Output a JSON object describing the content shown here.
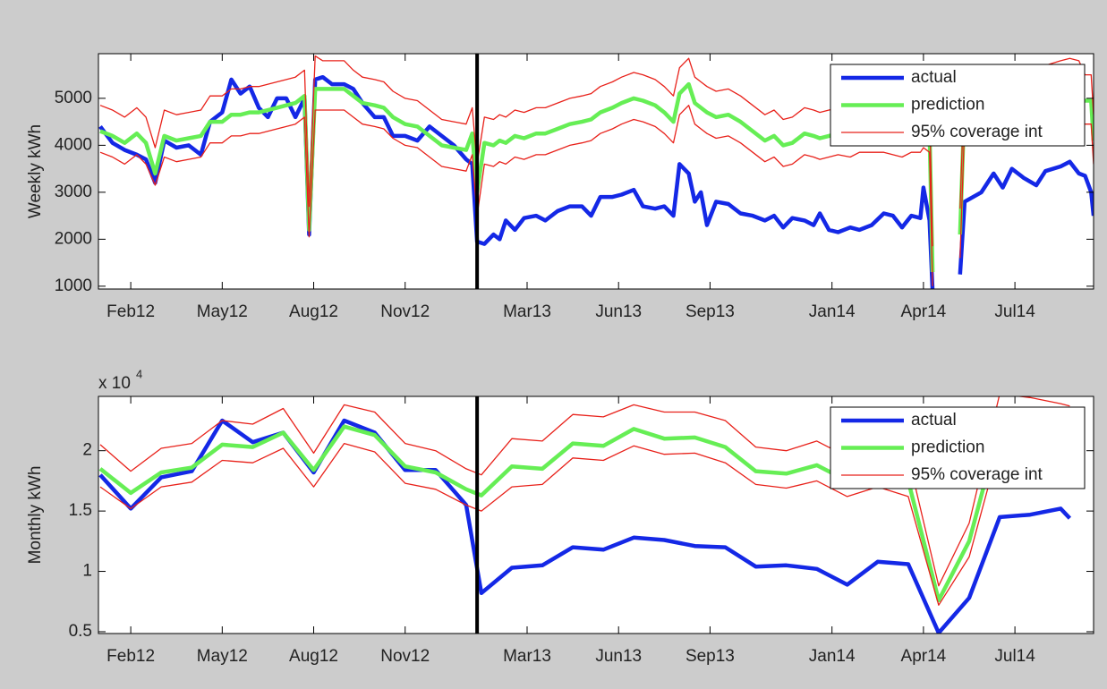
{
  "chart_data": [
    {
      "type": "line",
      "ylabel": "Weekly kWh",
      "x": [
        0,
        0.4,
        0.8,
        1.2,
        1.5,
        1.8,
        2.1,
        2.5,
        2.9,
        3.3,
        3.6,
        4.0,
        4.3,
        4.6,
        4.9,
        5.2,
        5.5,
        5.8,
        6.1,
        6.4,
        6.7,
        6.85,
        7.05,
        7.3,
        7.6,
        8.0,
        8.3,
        8.6,
        9.0,
        9.3,
        9.6,
        10.0,
        10.4,
        10.8,
        11.2,
        11.6,
        12.0,
        12.2,
        12.36,
        12.6,
        12.9,
        13.1,
        13.3,
        13.6,
        13.9,
        14.3,
        14.6,
        15.0,
        15.4,
        15.8,
        16.1,
        16.4,
        16.8,
        17.1,
        17.5,
        17.8,
        18.2,
        18.5,
        18.8,
        19.0,
        19.3,
        19.5,
        19.7,
        19.9,
        20.2,
        20.6,
        21.0,
        21.4,
        21.8,
        22.1,
        22.4,
        22.7,
        23.1,
        23.4,
        23.6,
        23.9,
        24.2,
        24.6,
        24.9,
        25.3,
        25.7,
        26.0,
        26.3,
        26.6,
        26.9,
        27.0,
        27.2,
        27.3,
        27.7,
        28.2,
        28.35,
        28.9,
        29.3,
        29.6,
        29.9,
        30.3,
        30.7,
        31.0,
        31.5,
        31.8,
        32.1,
        32.3,
        32.5,
        32.58
      ],
      "series": [
        {
          "name": "actual",
          "color": "#1428e6",
          "values": [
            4400,
            4050,
            3900,
            3800,
            3700,
            3200,
            4100,
            3950,
            4000,
            3800,
            4500,
            4700,
            5400,
            5100,
            5250,
            4800,
            4600,
            5000,
            5000,
            4600,
            5000,
            2100,
            5400,
            5450,
            5300,
            5300,
            5200,
            4900,
            4600,
            4600,
            4200,
            4200,
            4100,
            4400,
            4200,
            4000,
            3700,
            3600,
            1950,
            1900,
            2100,
            2000,
            2400,
            2200,
            2450,
            2500,
            2400,
            2600,
            2700,
            2700,
            2500,
            2900,
            2900,
            2950,
            3050,
            2700,
            2650,
            2700,
            2500,
            3600,
            3400,
            2800,
            3000,
            2300,
            2800,
            2750,
            2550,
            2500,
            2400,
            2500,
            2250,
            2450,
            2400,
            2300,
            2550,
            2200,
            2150,
            2250,
            2200,
            2300,
            2550,
            2500,
            2250,
            2500,
            2450,
            3100,
            2400,
            900,
            null,
            1250,
            2800,
            3000,
            3400,
            3100,
            3500,
            3300,
            3150,
            3450,
            3550,
            3650,
            3400,
            3350,
            3000,
            2500
          ]
        },
        {
          "name": "prediction",
          "color": "#66ee55",
          "values": [
            4300,
            4200,
            4050,
            4250,
            4050,
            3400,
            4200,
            4100,
            4150,
            4200,
            4500,
            4500,
            4650,
            4650,
            4700,
            4700,
            4750,
            4800,
            4850,
            4900,
            5050,
            2200,
            5200,
            5200,
            5200,
            5200,
            5050,
            4900,
            4850,
            4800,
            4600,
            4450,
            4400,
            4200,
            4000,
            3950,
            3900,
            4250,
            3000,
            4050,
            4000,
            4100,
            4050,
            4200,
            4150,
            4250,
            4250,
            4350,
            4450,
            4500,
            4550,
            4700,
            4800,
            4900,
            5000,
            4950,
            4850,
            4700,
            4500,
            5100,
            5300,
            4900,
            4800,
            4700,
            4600,
            4650,
            4500,
            4300,
            4100,
            4200,
            4000,
            4050,
            4250,
            4200,
            4150,
            4200,
            4250,
            4200,
            4300,
            4300,
            4300,
            4250,
            4200,
            4300,
            4300,
            4400,
            4300,
            1300,
            null,
            2100,
            4950,
            4950,
            4950,
            5000,
            5000,
            5000,
            5000,
            5000,
            5000,
            5000,
            5000,
            4950,
            4950,
            4100
          ]
        },
        {
          "name": "95% coverage int",
          "color": "#e8211a",
          "upper": [
            4850,
            4750,
            4600,
            4800,
            4600,
            3950,
            4750,
            4650,
            4700,
            4750,
            5050,
            5050,
            5200,
            5200,
            5250,
            5250,
            5300,
            5350,
            5400,
            5450,
            5600,
            2700,
            5900,
            5800,
            5800,
            5800,
            5600,
            5450,
            5400,
            5350,
            5150,
            5000,
            4950,
            4750,
            4550,
            4500,
            4450,
            4800,
            3600,
            4600,
            4550,
            4650,
            4600,
            4750,
            4700,
            4800,
            4800,
            4900,
            5000,
            5050,
            5100,
            5250,
            5350,
            5450,
            5550,
            5500,
            5400,
            5250,
            5050,
            5650,
            5850,
            5450,
            5350,
            5250,
            5150,
            5200,
            5050,
            4850,
            4650,
            4750,
            4550,
            4600,
            4800,
            4750,
            4700,
            4750,
            4800,
            4750,
            4850,
            4850,
            4850,
            4800,
            4750,
            4850,
            4850,
            4950,
            4850,
            1850,
            null,
            2650,
            5500,
            5500,
            5500,
            5550,
            5550,
            5550,
            5600,
            5700,
            5800,
            5850,
            5800,
            5500,
            5500,
            4650
          ],
          "lower": [
            3850,
            3750,
            3600,
            3800,
            3600,
            3150,
            3750,
            3650,
            3700,
            3750,
            4050,
            4050,
            4200,
            4200,
            4250,
            4250,
            4300,
            4350,
            4400,
            4450,
            4600,
            2050,
            4750,
            4750,
            4750,
            4750,
            4600,
            4450,
            4400,
            4350,
            4150,
            4000,
            3950,
            3750,
            3550,
            3500,
            3450,
            3800,
            2500,
            3600,
            3550,
            3650,
            3600,
            3750,
            3700,
            3800,
            3800,
            3900,
            4000,
            4050,
            4100,
            4250,
            4350,
            4450,
            4550,
            4500,
            4400,
            4250,
            4050,
            4650,
            4850,
            4450,
            4350,
            4250,
            4150,
            4200,
            4050,
            3850,
            3650,
            3750,
            3550,
            3600,
            3800,
            3750,
            3700,
            3750,
            3800,
            3750,
            3850,
            3850,
            3850,
            3800,
            3750,
            3850,
            3850,
            3950,
            3850,
            1000,
            null,
            1600,
            4450,
            4450,
            4450,
            4500,
            4500,
            4500,
            4500,
            4500,
            4500,
            4500,
            4500,
            4450,
            4450,
            3600
          ]
        }
      ],
      "xlim": [
        -0.06,
        32.58
      ],
      "xticks": [
        {
          "value": 1,
          "label": "Feb12"
        },
        {
          "value": 4,
          "label": "May12"
        },
        {
          "value": 7,
          "label": "Aug12"
        },
        {
          "value": 10,
          "label": "Nov12"
        },
        {
          "value": 14,
          "label": "Mar13"
        },
        {
          "value": 17,
          "label": "Jun13"
        },
        {
          "value": 20,
          "label": "Sep13"
        },
        {
          "value": 24,
          "label": "Jan14"
        },
        {
          "value": 27,
          "label": "Apr14"
        },
        {
          "value": 30,
          "label": "Jul14"
        }
      ],
      "ylim": [
        940,
        5950
      ],
      "yticks": [
        1000,
        2000,
        3000,
        4000,
        5000
      ],
      "split_x": 12.36,
      "legend": "upper right",
      "grid": false
    },
    {
      "type": "line",
      "ylabel": "Monthly kWh",
      "y_multiplier": "x 10",
      "y_multiplier_exponent": "4",
      "x": [
        0,
        1,
        2,
        3,
        4,
        5,
        6,
        7,
        8,
        9,
        10,
        11,
        12,
        12.5,
        13.5,
        14.5,
        15.5,
        16.5,
        17.5,
        18.5,
        19.5,
        20.5,
        21.5,
        22.5,
        23.5,
        24.5,
        25.5,
        26.5,
        27.5,
        28.5,
        29.5,
        30.5,
        31.5,
        31.8
      ],
      "series": [
        {
          "name": "actual",
          "color": "#1428e6",
          "values": [
            1.8,
            1.52,
            1.78,
            1.83,
            2.25,
            2.07,
            2.15,
            1.82,
            2.25,
            2.15,
            1.84,
            1.84,
            1.55,
            0.82,
            1.03,
            1.05,
            1.2,
            1.18,
            1.28,
            1.26,
            1.21,
            1.2,
            1.04,
            1.05,
            1.02,
            0.89,
            1.08,
            1.06,
            0.49,
            0.78,
            1.45,
            1.47,
            1.52,
            1.44
          ]
        },
        {
          "name": "prediction",
          "color": "#66ee55",
          "values": [
            1.85,
            1.65,
            1.82,
            1.86,
            2.05,
            2.03,
            2.15,
            1.84,
            2.2,
            2.13,
            1.87,
            1.82,
            1.68,
            1.63,
            1.87,
            1.85,
            2.06,
            2.04,
            2.18,
            2.1,
            2.11,
            2.03,
            1.83,
            1.81,
            1.88,
            1.75,
            1.85,
            1.75,
            0.76,
            1.25,
            2.2,
            2.2,
            2.15,
            2.12
          ]
        },
        {
          "name": "95% coverage int",
          "color": "#e8211a",
          "upper": [
            2.05,
            1.83,
            2.02,
            2.06,
            2.25,
            2.22,
            2.35,
            1.98,
            2.38,
            2.32,
            2.06,
            2.0,
            1.85,
            1.8,
            2.1,
            2.08,
            2.3,
            2.28,
            2.38,
            2.32,
            2.32,
            2.25,
            2.03,
            2.0,
            2.08,
            1.95,
            2.05,
            1.95,
            0.88,
            1.4,
            2.47,
            2.44,
            2.39,
            2.37
          ],
          "lower": [
            1.7,
            1.52,
            1.7,
            1.74,
            1.92,
            1.9,
            2.02,
            1.7,
            2.06,
            1.99,
            1.73,
            1.68,
            1.55,
            1.5,
            1.7,
            1.72,
            1.94,
            1.92,
            2.04,
            1.97,
            1.98,
            1.9,
            1.72,
            1.69,
            1.75,
            1.62,
            1.7,
            1.62,
            0.72,
            1.12,
            2.05,
            2.05,
            2.0,
            1.98
          ]
        }
      ],
      "xlim": [
        -0.06,
        32.58
      ],
      "xticks": [
        {
          "value": 1,
          "label": "Feb12"
        },
        {
          "value": 4,
          "label": "May12"
        },
        {
          "value": 7,
          "label": "Aug12"
        },
        {
          "value": 10,
          "label": "Nov12"
        },
        {
          "value": 14,
          "label": "Mar13"
        },
        {
          "value": 17,
          "label": "Jun13"
        },
        {
          "value": 20,
          "label": "Sep13"
        },
        {
          "value": 24,
          "label": "Jan14"
        },
        {
          "value": 27,
          "label": "Apr14"
        },
        {
          "value": 30,
          "label": "Jul14"
        }
      ],
      "ylim": [
        0.485,
        2.45
      ],
      "yticks": [
        0.5,
        1,
        1.5,
        2
      ],
      "split_x": 12.36,
      "legend": "upper right",
      "grid": false
    }
  ]
}
